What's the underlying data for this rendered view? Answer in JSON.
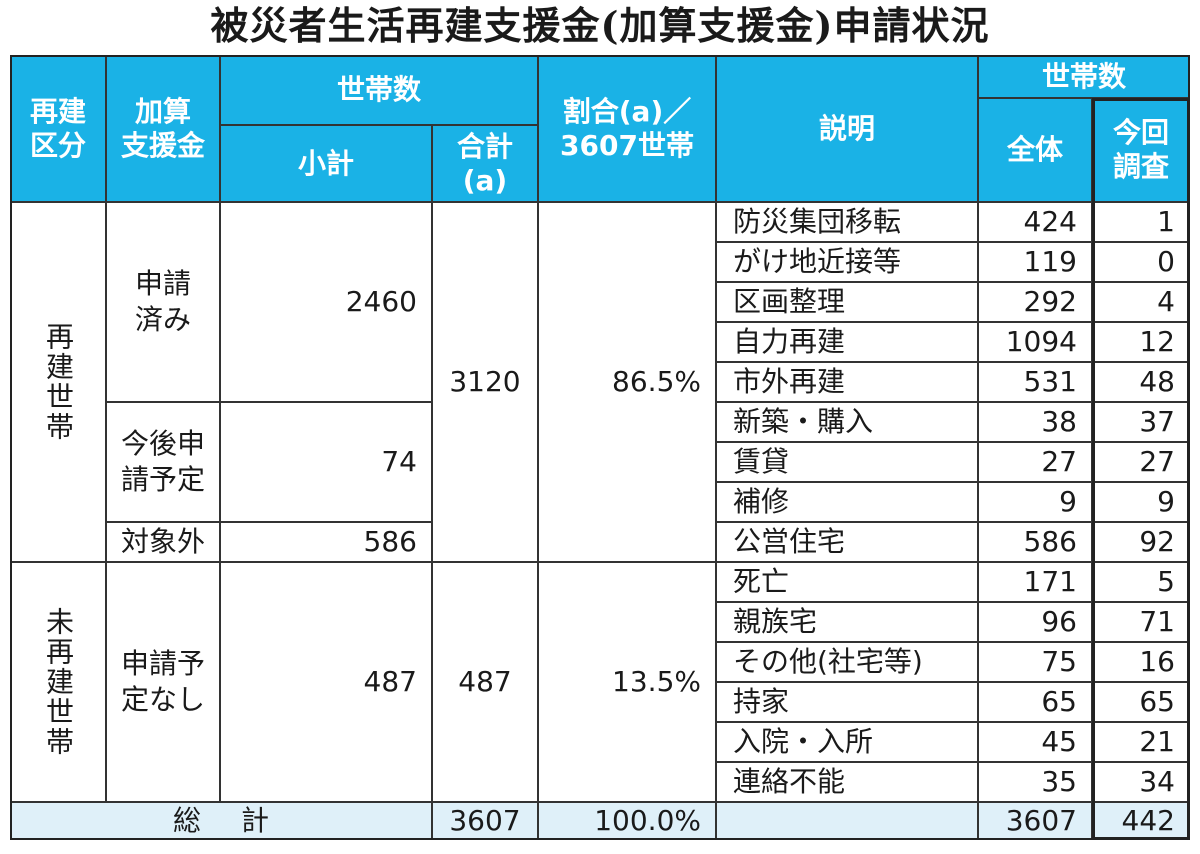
{
  "title": "被災者生活再建支援金(加算支援金)申請状況",
  "headers": {
    "category": "再建\n区分",
    "support": "加算\n支援金",
    "households": "世帯数",
    "subtotal": "小計",
    "total_a": "合計\n(a)",
    "ratio": "割合(a)／\n3607世帯",
    "explanation": "説明",
    "households2": "世帯数",
    "all": "全体",
    "current": "今回\n調査"
  },
  "groups": [
    {
      "category": "再建世帯",
      "total_a": "3120",
      "ratio": "86.5%"
    },
    {
      "category": "未再建世帯",
      "total_a": "487",
      "ratio": "13.5%"
    }
  ],
  "sub_groups": [
    {
      "label": "申請\n済み",
      "subtotal": "2460"
    },
    {
      "label": "今後申\n請予定",
      "subtotal": "74"
    },
    {
      "label": "対象外",
      "subtotal": "586"
    },
    {
      "label": "申請予\n定なし",
      "subtotal": "487"
    }
  ],
  "rows": [
    {
      "desc": "防災集団移転",
      "all": "424",
      "current": "1"
    },
    {
      "desc": "がけ地近接等",
      "all": "119",
      "current": "0"
    },
    {
      "desc": "区画整理",
      "all": "292",
      "current": "4"
    },
    {
      "desc": "自力再建",
      "all": "1094",
      "current": "12"
    },
    {
      "desc": "市外再建",
      "all": "531",
      "current": "48"
    },
    {
      "desc": "新築・購入",
      "all": "38",
      "current": "37"
    },
    {
      "desc": "賃貸",
      "all": "27",
      "current": "27"
    },
    {
      "desc": "補修",
      "all": "9",
      "current": "9"
    },
    {
      "desc": "公営住宅",
      "all": "586",
      "current": "92"
    },
    {
      "desc": "死亡",
      "all": "171",
      "current": "5"
    },
    {
      "desc": "親族宅",
      "all": "96",
      "current": "71"
    },
    {
      "desc": "その他(社宅等)",
      "all": "75",
      "current": "16"
    },
    {
      "desc": "持家",
      "all": "65",
      "current": "65"
    },
    {
      "desc": "入院・入所",
      "all": "45",
      "current": "21"
    },
    {
      "desc": "連絡不能",
      "all": "35",
      "current": "34"
    }
  ],
  "totals": {
    "label": "総計",
    "total_a": "3607",
    "ratio": "100.0%",
    "all": "3607",
    "current": "442"
  }
}
